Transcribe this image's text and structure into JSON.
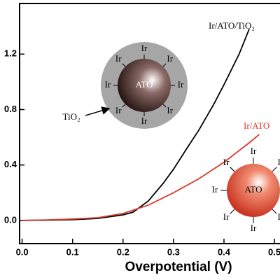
{
  "chart_data": {
    "type": "line",
    "x_label": "Overpotential (V)",
    "xlim": [
      -0.005,
      0.511
    ],
    "ylim": [
      -0.167,
      1.565
    ],
    "xticks": [
      {
        "value": 0,
        "label": "0.0"
      },
      0.1,
      0.2,
      0.3,
      0.4,
      0.5
    ],
    "yticks": [
      {
        "value": 0,
        "label": "0.0"
      },
      0.4,
      0.8,
      1.2
    ],
    "series": [
      {
        "name": "Ir/ATO/TiO₂",
        "color": "#000000",
        "x": [
          0,
          0.05,
          0.1,
          0.15,
          0.2,
          0.22,
          0.25,
          0.28,
          0.3,
          0.33,
          0.35,
          0.38,
          0.4,
          0.43,
          0.45
        ],
        "values": [
          0,
          0.002,
          0.005,
          0.015,
          0.04,
          0.06,
          0.14,
          0.27,
          0.37,
          0.54,
          0.65,
          0.84,
          0.98,
          1.2,
          1.38
        ]
      },
      {
        "name": "Ir/ATO",
        "color": "#d9382b",
        "x": [
          0,
          0.05,
          0.1,
          0.15,
          0.2,
          0.25,
          0.3,
          0.35,
          0.4,
          0.45,
          0.47
        ],
        "values": [
          0,
          0.004,
          0.01,
          0.02,
          0.05,
          0.11,
          0.2,
          0.3,
          0.42,
          0.56,
          0.62
        ]
      }
    ],
    "illustrations": {
      "ligand": "Ir",
      "core": "ATO",
      "shell": "TiO₂"
    }
  }
}
